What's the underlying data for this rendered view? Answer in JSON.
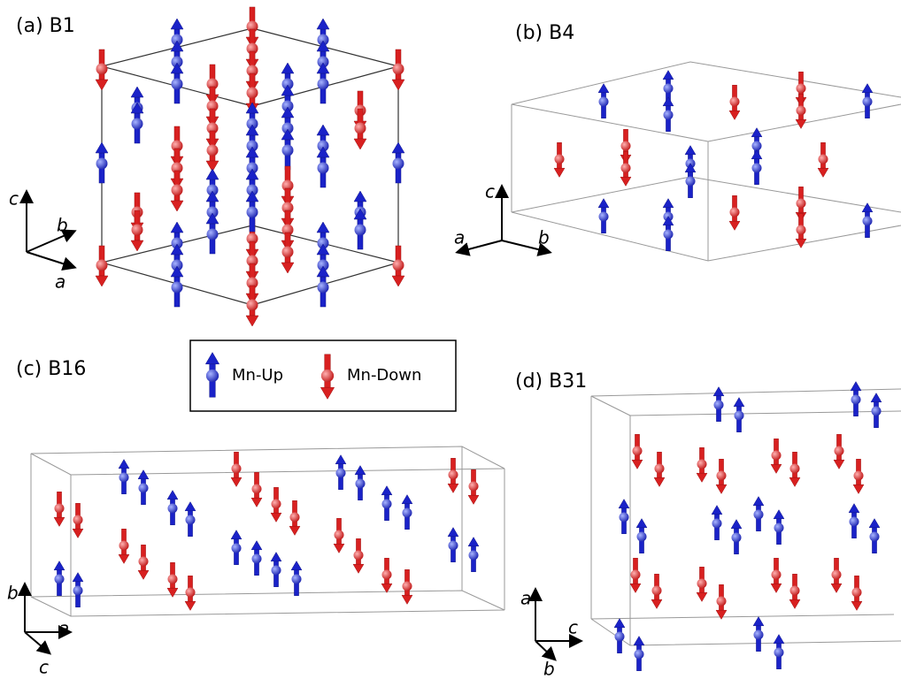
{
  "panels": [
    {
      "label": "(a) B1",
      "axes": [
        "c",
        "b",
        "a"
      ]
    },
    {
      "label": "(b) B4",
      "axes": [
        "c",
        "a",
        "b"
      ]
    },
    {
      "label": "(c) B16",
      "axes": [
        "b",
        "a",
        "c"
      ]
    },
    {
      "label": "(d) B31",
      "axes": [
        "a",
        "c",
        "b"
      ]
    }
  ],
  "legend": {
    "up": "Mn-Up",
    "down": "Mn-Down"
  }
}
